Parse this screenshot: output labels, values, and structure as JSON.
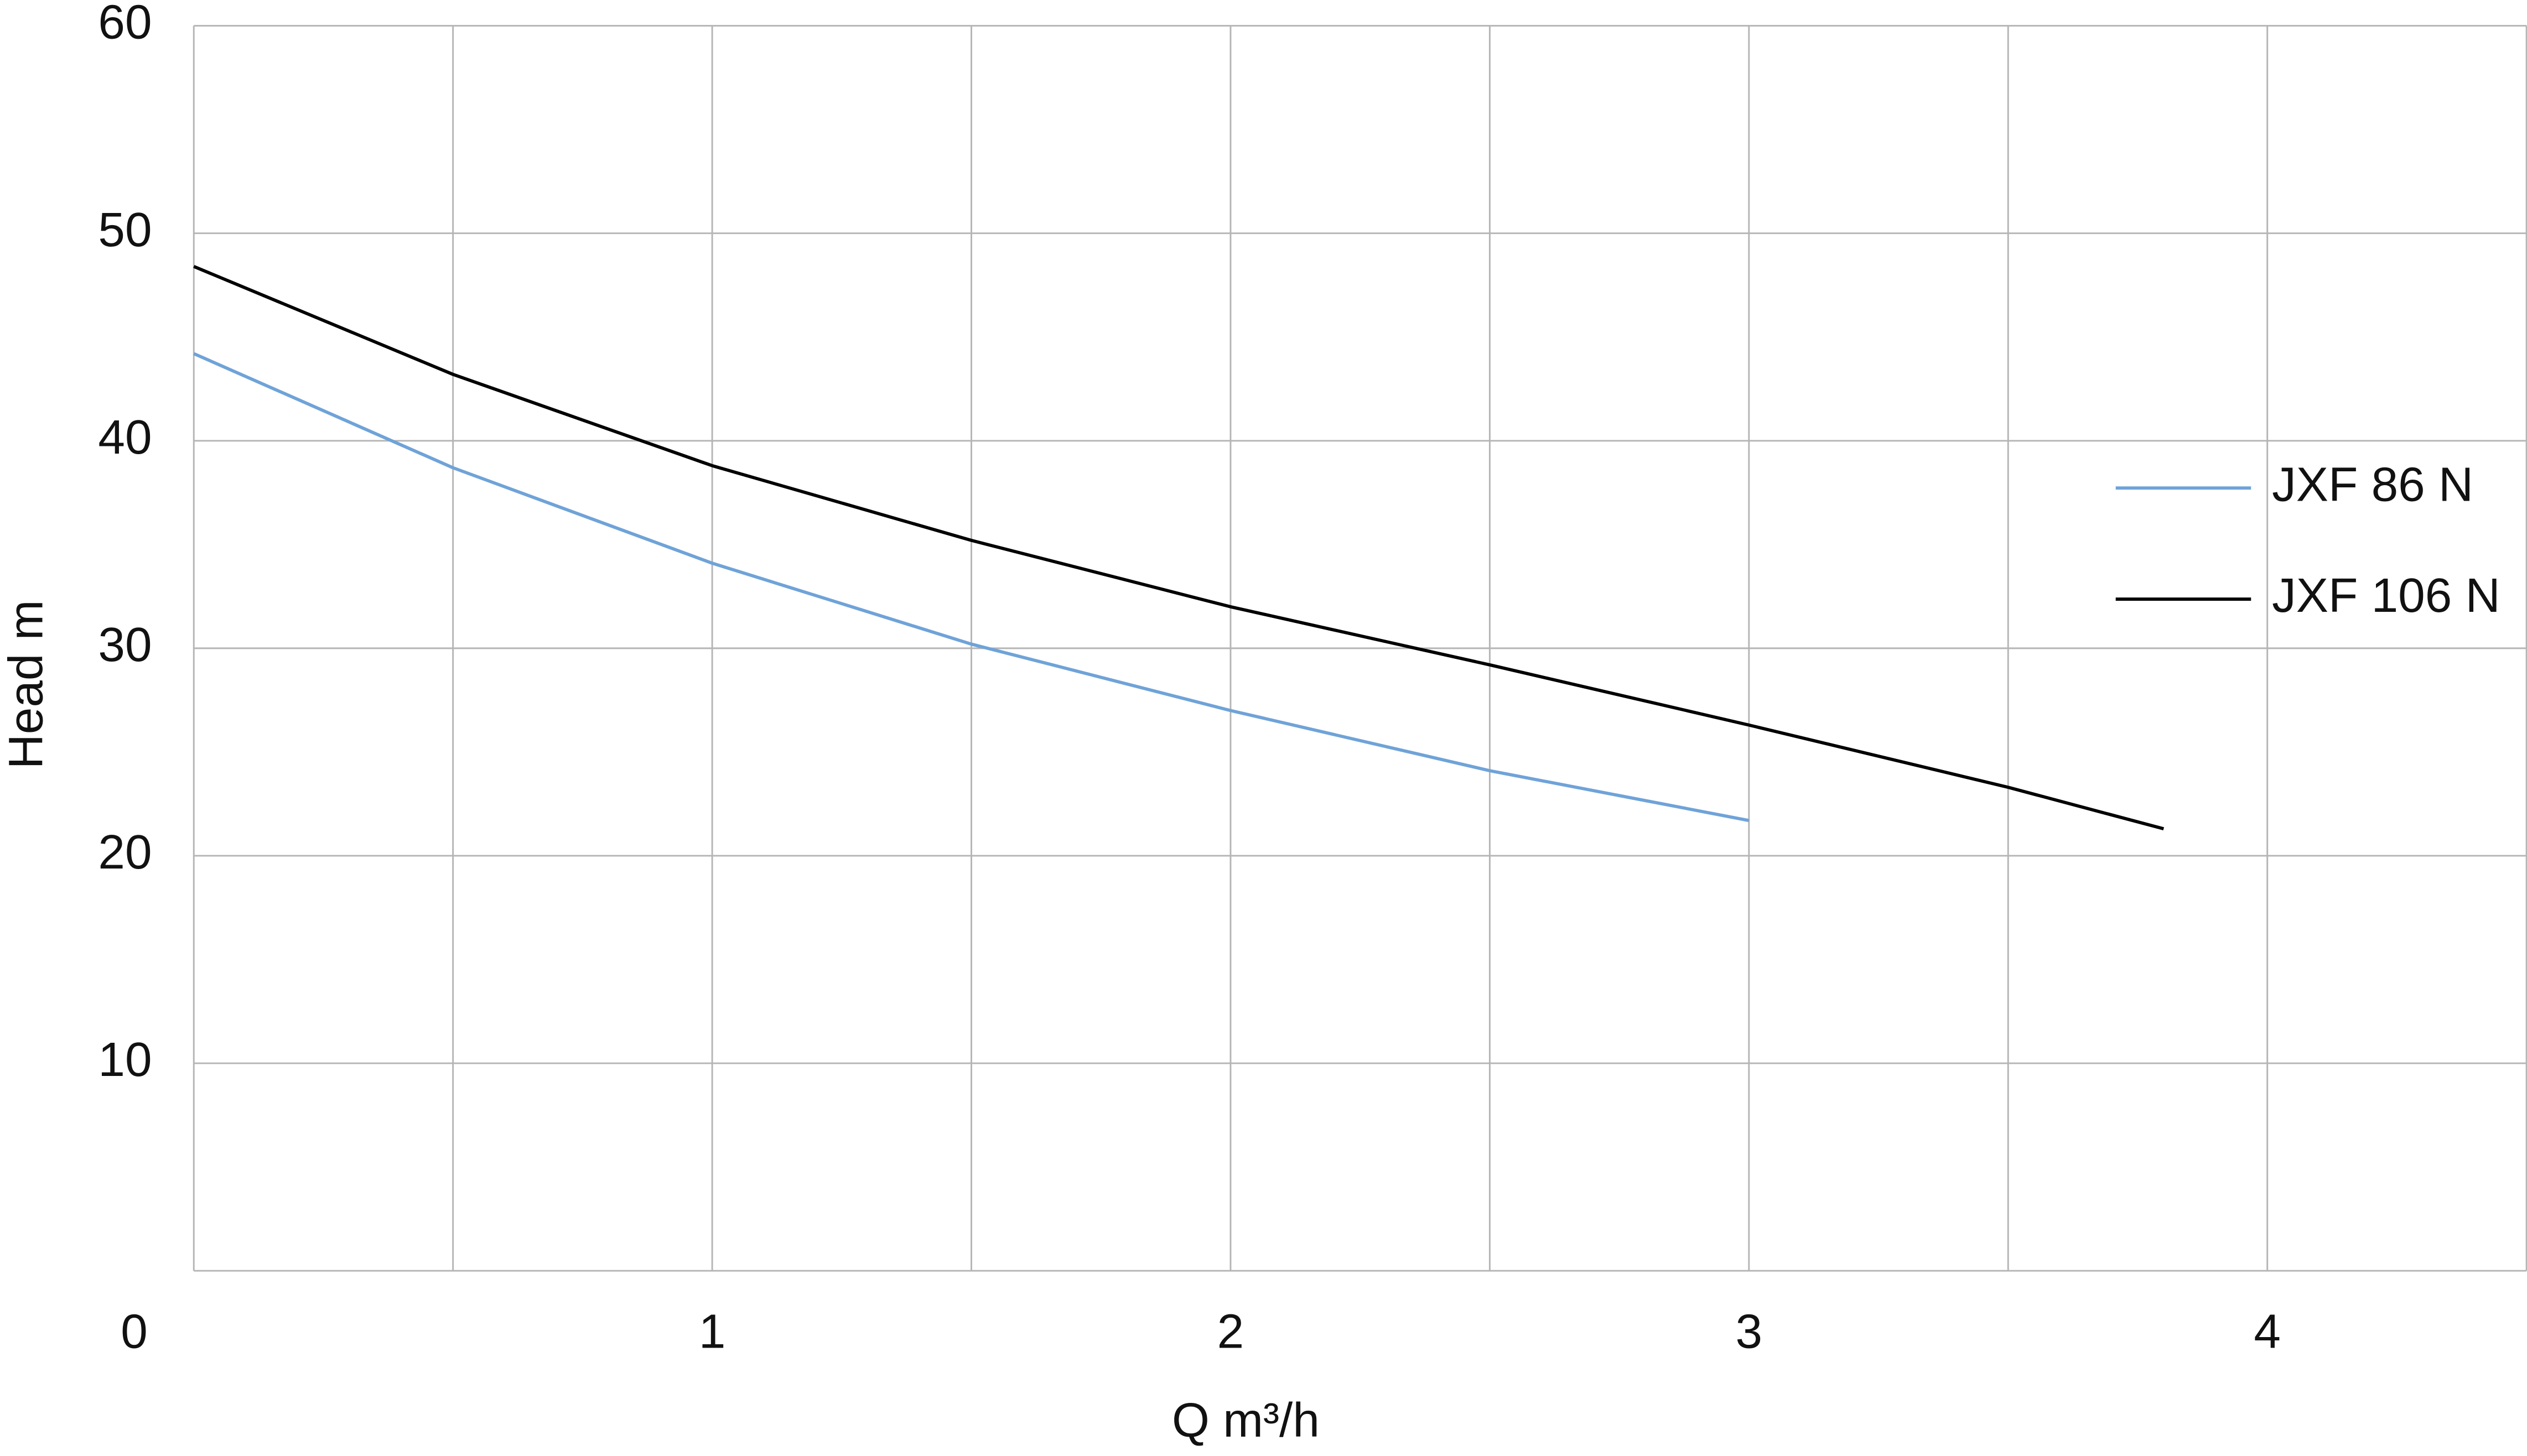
{
  "chart_data": {
    "type": "line",
    "xlabel": "Q m³/h",
    "ylabel": "Head m",
    "xlim": [
      0,
      4.5
    ],
    "ylim": [
      0,
      60
    ],
    "xticks": [
      0,
      1,
      2,
      3,
      4
    ],
    "x_minor_grid": [
      0.5,
      1.5,
      2.5,
      3.5,
      4.5
    ],
    "yticks": [
      10,
      20,
      30,
      40,
      50,
      60
    ],
    "grid": true,
    "legend": "right",
    "series": [
      {
        "name": "JXF 86 N",
        "color": "#6fa3d8",
        "x": [
          0,
          0.5,
          1,
          1.5,
          2,
          2.5,
          3
        ],
        "values": [
          44.2,
          38.7,
          34.1,
          30.2,
          27.0,
          24.1,
          21.7
        ]
      },
      {
        "name": "JXF 106 N",
        "color": "#000000",
        "x": [
          0,
          0.5,
          1,
          1.5,
          2,
          2.5,
          3,
          3.5,
          3.8
        ],
        "values": [
          48.4,
          43.2,
          38.8,
          35.2,
          32.0,
          29.2,
          26.3,
          23.3,
          21.3
        ]
      }
    ]
  }
}
